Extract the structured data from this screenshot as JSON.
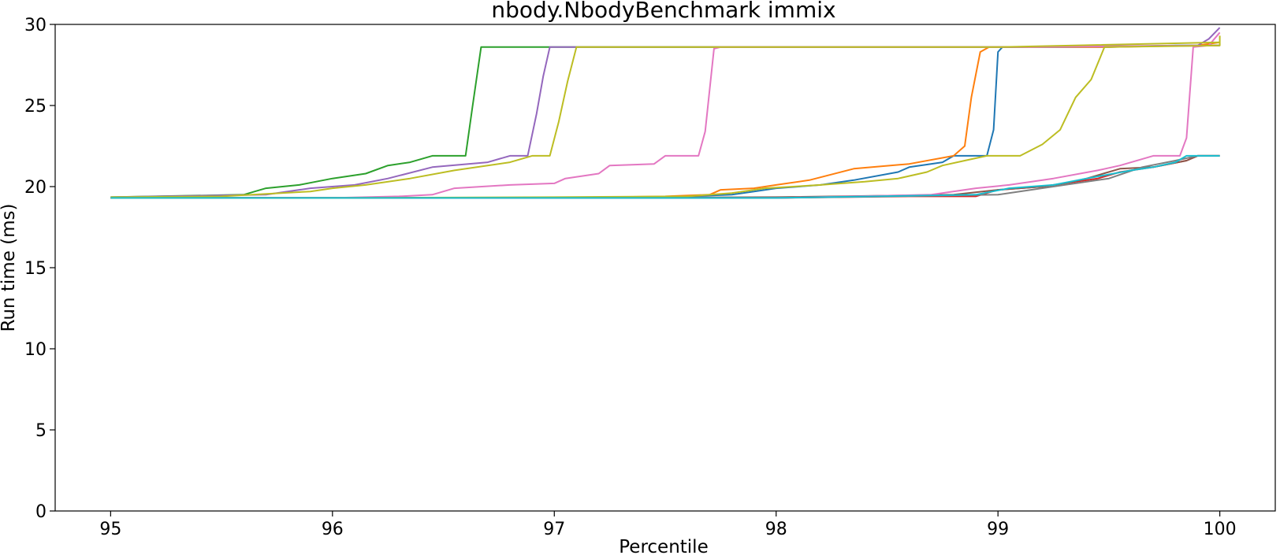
{
  "chart_data": {
    "type": "line",
    "title": "nbody.NbodyBenchmark immix",
    "xlabel": "Percentile",
    "ylabel": "Run time (ms)",
    "xlim": [
      94.75,
      100.25
    ],
    "ylim": [
      0,
      30.0
    ],
    "xticks": [
      95,
      96,
      97,
      98,
      99,
      100
    ],
    "yticks": [
      0,
      5,
      10,
      15,
      20,
      25,
      30
    ],
    "grid": false,
    "legend": "none",
    "series": [
      {
        "color": "#1f77b4",
        "points": [
          [
            95,
            19.3
          ],
          [
            96,
            19.3
          ],
          [
            97,
            19.3
          ],
          [
            97.5,
            19.35
          ],
          [
            97.8,
            19.5
          ],
          [
            97.9,
            19.7
          ],
          [
            98,
            19.9
          ],
          [
            98.2,
            20.1
          ],
          [
            98.35,
            20.4
          ],
          [
            98.55,
            20.9
          ],
          [
            98.6,
            21.2
          ],
          [
            98.75,
            21.5
          ],
          [
            98.8,
            21.9
          ],
          [
            98.95,
            21.9
          ],
          [
            98.98,
            23.5
          ],
          [
            99.0,
            28.3
          ],
          [
            99.02,
            28.6
          ],
          [
            99.5,
            28.6
          ],
          [
            99.8,
            28.7
          ],
          [
            100,
            28.7
          ]
        ]
      },
      {
        "color": "#ff7f0e",
        "points": [
          [
            95,
            19.3
          ],
          [
            96,
            19.3
          ],
          [
            97,
            19.3
          ],
          [
            97.5,
            19.4
          ],
          [
            97.7,
            19.5
          ],
          [
            97.75,
            19.8
          ],
          [
            97.9,
            19.9
          ],
          [
            98,
            20.1
          ],
          [
            98.15,
            20.4
          ],
          [
            98.35,
            21.1
          ],
          [
            98.6,
            21.4
          ],
          [
            98.8,
            21.9
          ],
          [
            98.85,
            22.5
          ],
          [
            98.88,
            25.5
          ],
          [
            98.92,
            28.3
          ],
          [
            98.96,
            28.6
          ],
          [
            99.5,
            28.6
          ],
          [
            99.9,
            28.7
          ],
          [
            100,
            28.9
          ]
        ]
      },
      {
        "color": "#2ca02c",
        "points": [
          [
            95,
            19.35
          ],
          [
            95.6,
            19.5
          ],
          [
            95.7,
            19.9
          ],
          [
            95.85,
            20.1
          ],
          [
            96,
            20.5
          ],
          [
            96.15,
            20.8
          ],
          [
            96.25,
            21.3
          ],
          [
            96.35,
            21.5
          ],
          [
            96.45,
            21.9
          ],
          [
            96.6,
            21.9
          ],
          [
            96.63,
            24.8
          ],
          [
            96.67,
            28.6
          ],
          [
            97,
            28.6
          ],
          [
            98,
            28.6
          ],
          [
            99,
            28.6
          ],
          [
            100,
            28.7
          ]
        ]
      },
      {
        "color": "#d62728",
        "points": [
          [
            95,
            19.3
          ],
          [
            96,
            19.3
          ],
          [
            97,
            19.3
          ],
          [
            98,
            19.3
          ],
          [
            98.6,
            19.4
          ],
          [
            98.9,
            19.4
          ],
          [
            99.0,
            19.8
          ],
          [
            99.2,
            20.0
          ],
          [
            99.3,
            20.2
          ],
          [
            99.45,
            20.5
          ],
          [
            99.55,
            20.9
          ],
          [
            99.7,
            21.2
          ],
          [
            99.85,
            21.6
          ],
          [
            99.9,
            21.9
          ],
          [
            100,
            21.9
          ]
        ]
      },
      {
        "color": "#9467bd",
        "points": [
          [
            95,
            19.35
          ],
          [
            95.7,
            19.5
          ],
          [
            95.9,
            19.9
          ],
          [
            96.1,
            20.1
          ],
          [
            96.25,
            20.5
          ],
          [
            96.45,
            21.2
          ],
          [
            96.7,
            21.5
          ],
          [
            96.8,
            21.9
          ],
          [
            96.88,
            21.9
          ],
          [
            96.92,
            24.5
          ],
          [
            96.95,
            26.8
          ],
          [
            96.98,
            28.6
          ],
          [
            97.05,
            28.6
          ],
          [
            98,
            28.6
          ],
          [
            99,
            28.6
          ],
          [
            99.9,
            28.7
          ],
          [
            99.95,
            29.1
          ],
          [
            100,
            29.8
          ]
        ]
      },
      {
        "color": "#8c564b",
        "points": [
          [
            95,
            19.3
          ],
          [
            96,
            19.3
          ],
          [
            97,
            19.3
          ],
          [
            98,
            19.35
          ],
          [
            98.8,
            19.5
          ],
          [
            99,
            19.8
          ],
          [
            99.2,
            20.0
          ],
          [
            99.3,
            20.2
          ],
          [
            99.4,
            20.5
          ],
          [
            99.55,
            21.1
          ],
          [
            99.7,
            21.2
          ],
          [
            99.85,
            21.6
          ],
          [
            99.9,
            21.9
          ],
          [
            100,
            21.9
          ]
        ]
      },
      {
        "color": "#e377c2",
        "points": [
          [
            95,
            19.3
          ],
          [
            96,
            19.3
          ],
          [
            96.3,
            19.4
          ],
          [
            96.45,
            19.5
          ],
          [
            96.55,
            19.9
          ],
          [
            96.8,
            20.1
          ],
          [
            97.0,
            20.2
          ],
          [
            97.05,
            20.5
          ],
          [
            97.2,
            20.8
          ],
          [
            97.25,
            21.3
          ],
          [
            97.45,
            21.4
          ],
          [
            97.5,
            21.9
          ],
          [
            97.65,
            21.9
          ],
          [
            97.68,
            23.4
          ],
          [
            97.72,
            28.5
          ],
          [
            97.75,
            28.6
          ],
          [
            98.5,
            28.6
          ],
          [
            99,
            28.6
          ],
          [
            100,
            28.7
          ]
        ]
      },
      {
        "color": "#e377c2",
        "points": [
          [
            95,
            19.3
          ],
          [
            97,
            19.3
          ],
          [
            98,
            19.3
          ],
          [
            98.7,
            19.5
          ],
          [
            98.9,
            19.9
          ],
          [
            99.05,
            20.1
          ],
          [
            99.25,
            20.5
          ],
          [
            99.45,
            21.0
          ],
          [
            99.55,
            21.3
          ],
          [
            99.7,
            21.9
          ],
          [
            99.82,
            21.9
          ],
          [
            99.85,
            23.0
          ],
          [
            99.88,
            28.6
          ],
          [
            99.95,
            28.7
          ],
          [
            100,
            29.5
          ]
        ]
      },
      {
        "color": "#7f7f7f",
        "points": [
          [
            95,
            19.3
          ],
          [
            96,
            19.3
          ],
          [
            97,
            19.3
          ],
          [
            98,
            19.3
          ],
          [
            99,
            19.5
          ],
          [
            99.3,
            20.1
          ],
          [
            99.5,
            20.5
          ],
          [
            99.65,
            21.2
          ],
          [
            99.8,
            21.6
          ],
          [
            99.9,
            21.9
          ],
          [
            100,
            21.9
          ]
        ]
      },
      {
        "color": "#bcbd22",
        "points": [
          [
            95,
            19.35
          ],
          [
            95.5,
            19.4
          ],
          [
            95.9,
            19.7
          ],
          [
            96,
            19.9
          ],
          [
            96.15,
            20.1
          ],
          [
            96.35,
            20.5
          ],
          [
            96.55,
            21.0
          ],
          [
            96.8,
            21.5
          ],
          [
            96.9,
            21.9
          ],
          [
            96.98,
            21.9
          ],
          [
            97.02,
            24.0
          ],
          [
            97.06,
            26.5
          ],
          [
            97.1,
            28.6
          ],
          [
            98,
            28.6
          ],
          [
            99,
            28.6
          ],
          [
            100,
            28.9
          ]
        ]
      },
      {
        "color": "#bcbd22",
        "points": [
          [
            95,
            19.3
          ],
          [
            96,
            19.3
          ],
          [
            97,
            19.35
          ],
          [
            97.6,
            19.4
          ],
          [
            97.8,
            19.6
          ],
          [
            97.95,
            19.9
          ],
          [
            98.2,
            20.1
          ],
          [
            98.4,
            20.3
          ],
          [
            98.55,
            20.5
          ],
          [
            98.68,
            20.9
          ],
          [
            98.75,
            21.3
          ],
          [
            98.85,
            21.6
          ],
          [
            98.95,
            21.9
          ],
          [
            99.1,
            21.9
          ],
          [
            99.2,
            22.6
          ],
          [
            99.28,
            23.5
          ],
          [
            99.35,
            25.5
          ],
          [
            99.42,
            26.6
          ],
          [
            99.48,
            28.6
          ],
          [
            100,
            28.7
          ],
          [
            100,
            29.3
          ]
        ]
      },
      {
        "color": "#17becf",
        "points": [
          [
            95,
            19.3
          ],
          [
            96,
            19.3
          ],
          [
            97,
            19.3
          ],
          [
            98,
            19.3
          ],
          [
            98.9,
            19.5
          ],
          [
            99.05,
            19.9
          ],
          [
            99.25,
            20.1
          ],
          [
            99.4,
            20.5
          ],
          [
            99.6,
            21.0
          ],
          [
            99.7,
            21.2
          ],
          [
            99.8,
            21.5
          ],
          [
            99.85,
            21.9
          ],
          [
            100,
            21.9
          ]
        ]
      }
    ]
  }
}
